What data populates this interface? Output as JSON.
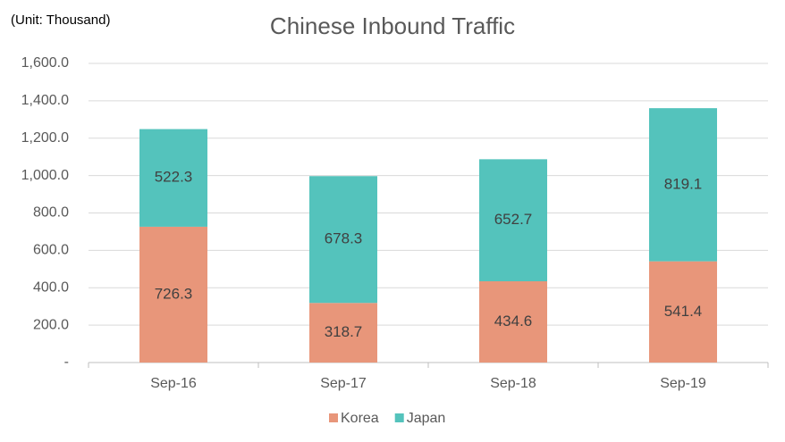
{
  "chart_data": {
    "type": "stacked_bar",
    "title": "Chinese Inbound Traffic",
    "annotation": "(Unit: Thousand)",
    "categories": [
      "Sep-16",
      "Sep-17",
      "Sep-18",
      "Sep-19"
    ],
    "series": [
      {
        "name": "Korea",
        "color": "#e8967a",
        "values": [
          726.3,
          318.7,
          434.6,
          541.4
        ]
      },
      {
        "name": "Japan",
        "color": "#54c3bc",
        "values": [
          522.3,
          678.3,
          652.7,
          819.1
        ]
      }
    ],
    "ylim": [
      0,
      1600
    ],
    "yticks": [
      {
        "value": 0,
        "label": "-"
      },
      {
        "value": 200,
        "label": "200.0"
      },
      {
        "value": 400,
        "label": "400.0"
      },
      {
        "value": 600,
        "label": "600.0"
      },
      {
        "value": 800,
        "label": "800.0"
      },
      {
        "value": 1000,
        "label": "1,000.0"
      },
      {
        "value": 1200,
        "label": "1,200.0"
      },
      {
        "value": 1400,
        "label": "1,400.0"
      },
      {
        "value": 1600,
        "label": "1,600.0"
      }
    ],
    "grid": true,
    "legend": "bottom"
  }
}
